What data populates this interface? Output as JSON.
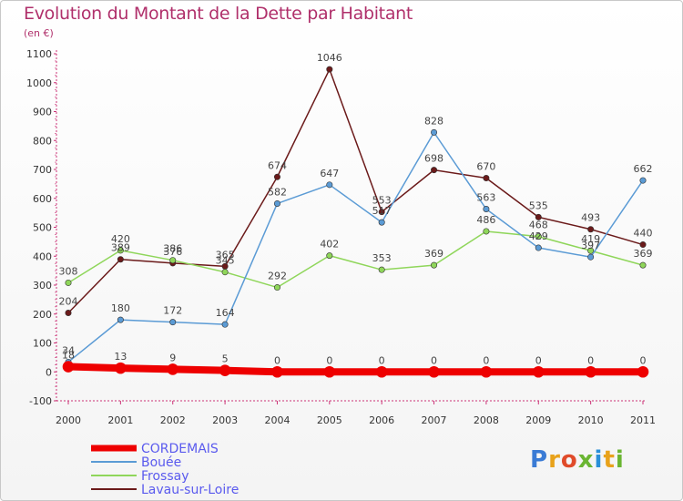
{
  "title": "Evolution du Montant de la Dette par Habitant",
  "unit": "(en €)",
  "logo": {
    "text": "Proxiti",
    "colors": [
      "#3a7bd5",
      "#e8a21b",
      "#e04b2a",
      "#6ab532",
      "#2a8fd8",
      "#e8a21b",
      "#6ab532"
    ]
  },
  "chart_data": {
    "type": "line",
    "title": "Evolution du Montant de la Dette par Habitant",
    "ylabel": "(en €)",
    "xlabel": "",
    "ylim": [
      -100,
      1100
    ],
    "yticks": [
      -100,
      0,
      100,
      200,
      300,
      400,
      500,
      600,
      700,
      800,
      900,
      1000,
      1100
    ],
    "categories": [
      "2000",
      "2001",
      "2002",
      "2003",
      "2004",
      "2005",
      "2006",
      "2007",
      "2008",
      "2009",
      "2010",
      "2011"
    ],
    "grid": false,
    "legend_position": "bottom-left",
    "series": [
      {
        "name": "Lavau-sur-Loire",
        "color": "#6b1a1a",
        "width": 1.5,
        "dot": true,
        "values": [
          204,
          389,
          376,
          365,
          674,
          1046,
          553,
          698,
          670,
          535,
          493,
          440
        ],
        "labels": [
          "204",
          "389",
          "376",
          "365",
          "674",
          "1046",
          "553",
          "698",
          "670",
          "535",
          "493",
          "440"
        ]
      },
      {
        "name": "Frossay",
        "color": "#8fd65a",
        "width": 1.5,
        "dot": true,
        "values": [
          308,
          420,
          386,
          345,
          292,
          402,
          353,
          369,
          486,
          468,
          419,
          369
        ],
        "labels": [
          "308",
          "420",
          "386",
          "345",
          "292",
          "402",
          "353",
          "369",
          "486",
          "468",
          "419",
          "369"
        ]
      },
      {
        "name": "Bouée",
        "color": "#5b9bd5",
        "width": 1.5,
        "dot": true,
        "values": [
          34,
          180,
          172,
          164,
          582,
          647,
          517,
          828,
          563,
          429,
          397,
          662
        ],
        "labels": [
          "34",
          "180",
          "172",
          "164",
          "582",
          "647",
          "517",
          "828",
          "563",
          "429",
          "397",
          "662"
        ]
      },
      {
        "name": "CORDEMAIS",
        "color": "#ee0000",
        "width": 8,
        "dot": true,
        "values": [
          18,
          13,
          9,
          5,
          0,
          0,
          0,
          0,
          0,
          0,
          0,
          0
        ],
        "labels": [
          "18",
          "13",
          "9",
          "5",
          "0",
          "0",
          "0",
          "0",
          "0",
          "0",
          "0",
          "0"
        ]
      }
    ],
    "legend": [
      "CORDEMAIS",
      "Bouée",
      "Frossay",
      "Lavau-sur-Loire"
    ]
  }
}
